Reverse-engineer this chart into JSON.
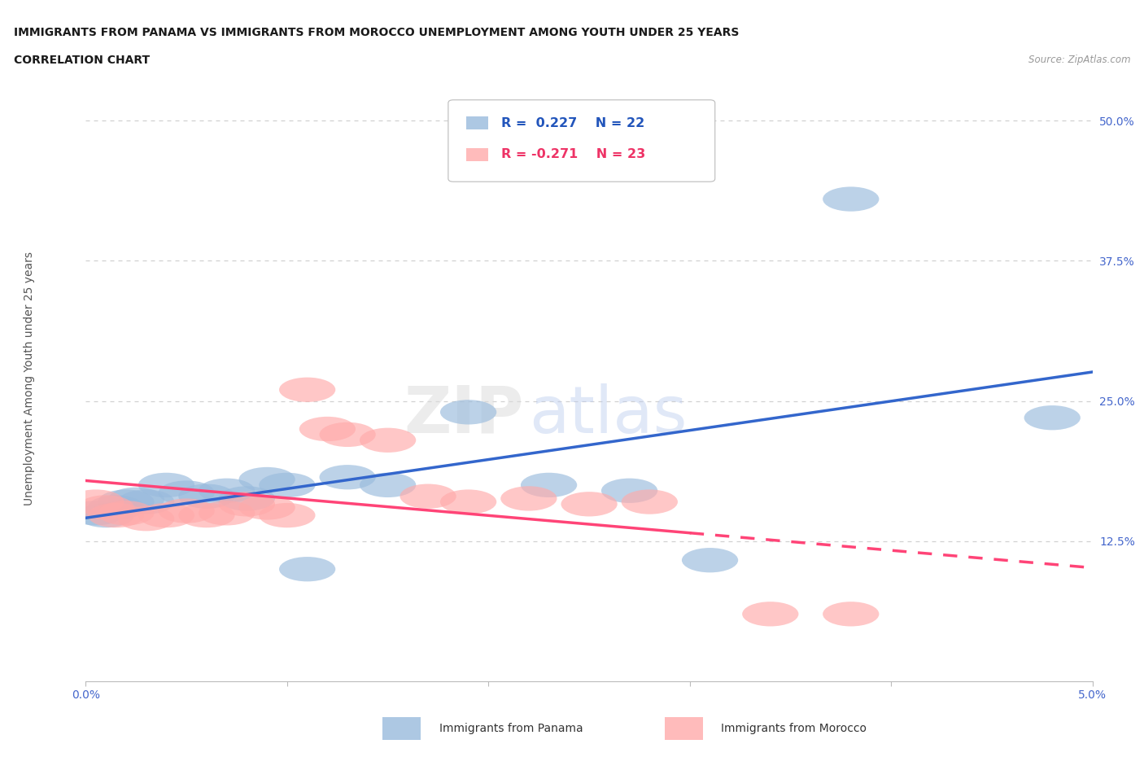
{
  "title_line1": "IMMIGRANTS FROM PANAMA VS IMMIGRANTS FROM MOROCCO UNEMPLOYMENT AMONG YOUTH UNDER 25 YEARS",
  "title_line2": "CORRELATION CHART",
  "source_text": "Source: ZipAtlas.com",
  "ylabel": "Unemployment Among Youth under 25 years",
  "xlim": [
    0.0,
    0.05
  ],
  "ylim": [
    0.0,
    0.54
  ],
  "xticks": [
    0.0,
    0.01,
    0.02,
    0.03,
    0.04,
    0.05
  ],
  "xticklabels": [
    "0.0%",
    "",
    "",
    "",
    "",
    "5.0%"
  ],
  "yticks": [
    0.0,
    0.125,
    0.25,
    0.375,
    0.5
  ],
  "yticklabels": [
    "",
    "12.5%",
    "25.0%",
    "37.5%",
    "50.0%"
  ],
  "panama_R": 0.227,
  "panama_N": 22,
  "morocco_R": -0.271,
  "morocco_N": 23,
  "panama_color": "#99BBDD",
  "morocco_color": "#FFAAAA",
  "panama_line_color": "#3366CC",
  "morocco_line_color": "#FF4477",
  "panama_x": [
    0.0005,
    0.001,
    0.0015,
    0.002,
    0.0025,
    0.003,
    0.004,
    0.005,
    0.006,
    0.007,
    0.008,
    0.009,
    0.01,
    0.011,
    0.013,
    0.015,
    0.019,
    0.023,
    0.027,
    0.031,
    0.038,
    0.048
  ],
  "panama_y": [
    0.15,
    0.148,
    0.155,
    0.16,
    0.162,
    0.16,
    0.175,
    0.168,
    0.165,
    0.17,
    0.163,
    0.18,
    0.175,
    0.1,
    0.182,
    0.175,
    0.24,
    0.175,
    0.17,
    0.108,
    0.43,
    0.235
  ],
  "morocco_x": [
    0.0005,
    0.001,
    0.0015,
    0.002,
    0.003,
    0.004,
    0.005,
    0.006,
    0.007,
    0.008,
    0.009,
    0.01,
    0.011,
    0.012,
    0.013,
    0.015,
    0.017,
    0.019,
    0.022,
    0.025,
    0.028,
    0.034,
    0.038
  ],
  "morocco_y": [
    0.16,
    0.155,
    0.148,
    0.15,
    0.145,
    0.148,
    0.152,
    0.148,
    0.15,
    0.158,
    0.155,
    0.148,
    0.26,
    0.225,
    0.22,
    0.215,
    0.165,
    0.16,
    0.163,
    0.158,
    0.16,
    0.06,
    0.06
  ],
  "watermark_zip": "ZIP",
  "watermark_atlas": "atlas",
  "grid_color": "#CCCCCC",
  "bg_color": "#FFFFFF"
}
